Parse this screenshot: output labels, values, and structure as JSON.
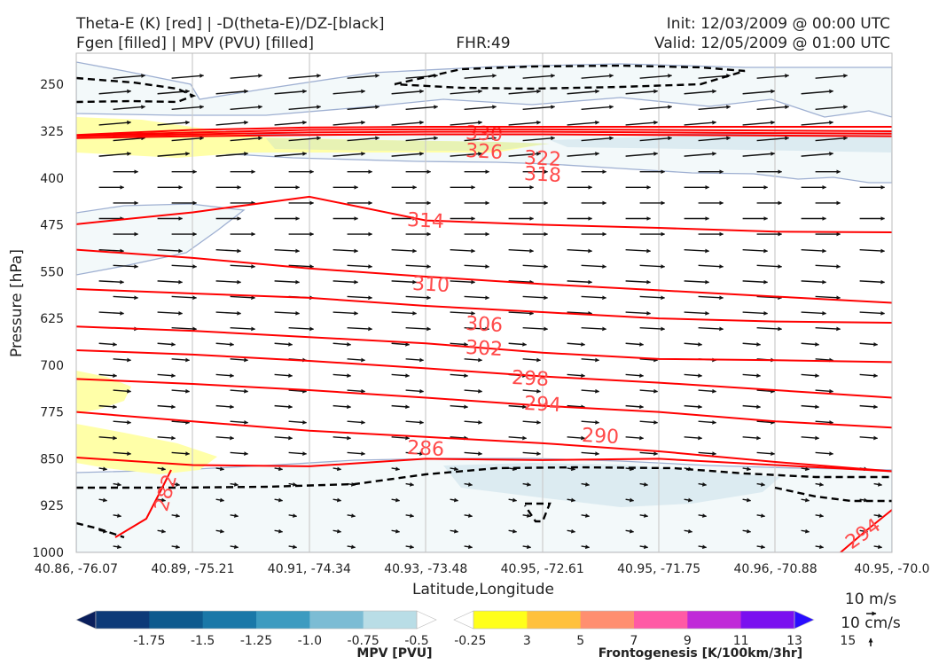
{
  "header": {
    "title_left_1": "Theta-E (K) [red] | -D(theta-E)/DZ-[black]",
    "title_left_2": "Fgen [filled] | MPV (PVU) [filled]",
    "fhr": "FHR:49",
    "init": "Init: 12/03/2009 @ 00:00 UTC",
    "valid": "Valid: 12/05/2009 @ 01:00 UTC"
  },
  "chart_data": {
    "type": "cross-section",
    "xlabel": "Latitude,Longitude",
    "ylabel": "Pressure [hPa]",
    "x_ticks": [
      "40.86, -76.07",
      "40.89, -75.21",
      "40.91, -74.34",
      "40.93, -73.48",
      "40.95, -72.61",
      "40.95, -71.75",
      "40.96, -70.88",
      "40.95, -70.0"
    ],
    "y_ticks": [
      "250",
      "325",
      "400",
      "475",
      "550",
      "625",
      "700",
      "775",
      "850",
      "925",
      "1000"
    ],
    "ylim": [
      1000,
      200
    ],
    "y_scale": "pressure (inverted)",
    "theta_e_contours": [
      {
        "label": "330",
        "values": [
          336,
          333,
          331,
          330,
          330,
          331,
          332,
          333
        ]
      },
      {
        "label": "326",
        "values": [
          333,
          330,
          327,
          326,
          326,
          327,
          328,
          329
        ]
      },
      {
        "label": "322",
        "values": [
          332,
          327,
          323,
          322,
          322,
          323,
          324,
          325
        ]
      },
      {
        "label": "318",
        "values": [
          331,
          323,
          319,
          318,
          318,
          318,
          318,
          318
        ]
      },
      {
        "label": "314",
        "values": [
          474,
          455,
          430,
          468,
          475,
          480,
          486,
          487
        ]
      },
      {
        "label": "310",
        "values": [
          515,
          528,
          545,
          558,
          570,
          580,
          590,
          600
        ]
      },
      {
        "label": "306",
        "values": [
          578,
          585,
          592,
          605,
          615,
          625,
          630,
          632
        ]
      },
      {
        "label": "302",
        "values": [
          638,
          645,
          655,
          665,
          680,
          690,
          692,
          695
        ]
      },
      {
        "label": "298",
        "values": [
          676,
          683,
          693,
          705,
          718,
          728,
          740,
          752
        ]
      },
      {
        "label": "294",
        "values": [
          722,
          730,
          740,
          752,
          765,
          775,
          790,
          800
        ]
      },
      {
        "label": "290",
        "values": [
          775,
          790,
          805,
          815,
          825,
          838,
          855,
          870
        ]
      },
      {
        "label": "286",
        "values": [
          848,
          860,
          862,
          850,
          852,
          850,
          860,
          870
        ]
      },
      {
        "label": "282",
        "values": [
          870,
          905,
          950,
          1000
        ]
      },
      {
        "label": "294",
        "values": [
          1000,
          960,
          950
        ]
      }
    ],
    "colorbars": [
      {
        "name": "MPV [PVU]",
        "ticks": [
          "-1.75",
          "-1.5",
          "-1.25",
          "-1.0",
          "-0.75",
          "-0.5",
          "-0.25"
        ],
        "colors": [
          "#0a1f5c",
          "#0d3a78",
          "#0e5a8e",
          "#1a78a8",
          "#3d9bc0",
          "#7cbcd4",
          "#b9dde6",
          "#ffffff"
        ]
      },
      {
        "name": "Frontogenesis [K/100km/3hr]",
        "ticks": [
          "3",
          "5",
          "7",
          "9",
          "11",
          "13",
          "15"
        ],
        "colors": [
          "#ffffff",
          "#ffff1a",
          "#ffc13d",
          "#ff8f70",
          "#ff5aa5",
          "#c02ad8",
          "#7a10ef",
          "#2a0dff"
        ]
      }
    ],
    "wind_reference": {
      "label_1": "10 m/s",
      "label_2": "10 cm/s"
    },
    "grid": true
  },
  "colors": {
    "theta_e": "#ff0000",
    "theta_e_label": "#ff4a4a",
    "dthetae_dz": "#000000",
    "mpv_light": "#f3f9fa",
    "mpv_medium": "#dcebf1",
    "mpv_outline": "#9fb0d2",
    "fgen_yellow": "#ffffa8",
    "fgen_green": "#e7f2b4"
  }
}
